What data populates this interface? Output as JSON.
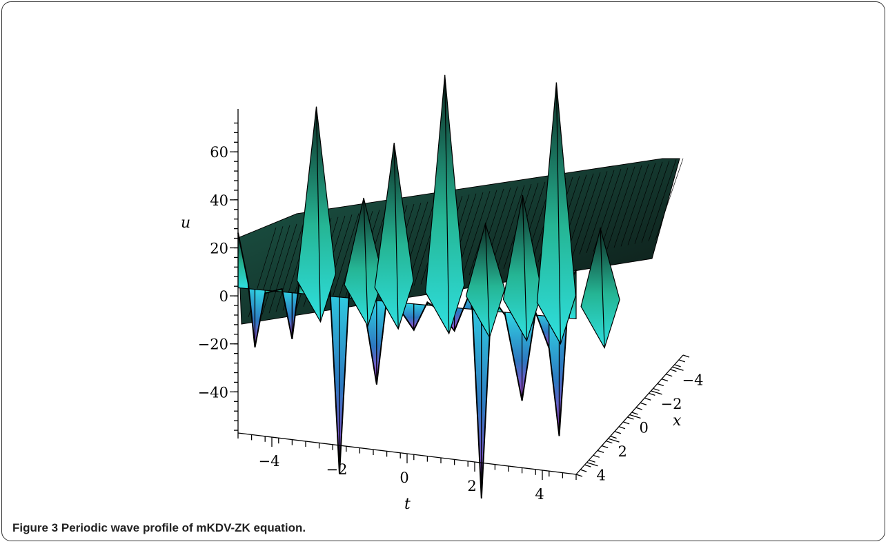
{
  "figure": {
    "number": "Figure 3",
    "caption": "Periodic wave profile of mKDV-ZK equation."
  },
  "chart_data": {
    "type": "surface3d",
    "title": "",
    "xlabel": "t",
    "ylabel": "x",
    "zlabel": "u",
    "t_range": [
      -5,
      5
    ],
    "x_range": [
      -5,
      5
    ],
    "u_range": [
      -60,
      75
    ],
    "t_ticks": [
      "-4",
      "-2",
      "0",
      "2",
      "4"
    ],
    "x_ticks": [
      "-4",
      "-2",
      "0",
      "2",
      "4"
    ],
    "u_ticks": [
      "-40",
      "-20",
      "0",
      "20",
      "40",
      "60"
    ],
    "u_tick_values": [
      -40,
      -20,
      0,
      20,
      40,
      60
    ],
    "t_tick_values": [
      -4,
      -2,
      0,
      2,
      4
    ],
    "x_tick_values": [
      -4,
      -2,
      0,
      2,
      4
    ],
    "front_profile": {
      "t": [
        -5,
        -4.7,
        -4.5,
        -4.2,
        -3.7,
        -3.4,
        -3.2,
        -2.7,
        -2.3,
        -2.0,
        -1.7,
        -1.3,
        -0.9,
        -0.6,
        -0.3,
        0.2,
        0.6,
        0.9,
        1.4,
        1.9,
        2.2,
        2.5,
        2.9,
        3.4,
        3.8,
        4.2,
        4.5,
        4.8,
        5.0
      ],
      "u": [
        22,
        5,
        -17,
        2,
        4,
        -13,
        6,
        3,
        10,
        -58,
        8,
        2,
        -26,
        4,
        2,
        -6,
        4,
        2,
        -5,
        10,
        -62,
        8,
        2,
        -27,
        4,
        -8,
        -38,
        15,
        20
      ]
    },
    "peak_ridges": [
      {
        "t": -3.5,
        "u": 60
      },
      {
        "t": -2.1,
        "u": 30
      },
      {
        "t": -1.2,
        "u": 50
      },
      {
        "t": 0.3,
        "u": 75
      },
      {
        "t": 1.5,
        "u": 25
      },
      {
        "t": 2.6,
        "u": 36
      },
      {
        "t": 3.6,
        "u": 76
      },
      {
        "t": 4.9,
        "u": 27
      }
    ],
    "colormap": [
      "#2fe0e8",
      "#2fc9a8",
      "#1d6b57",
      "#0c1a16",
      "#6a1e4f",
      "#b040c8"
    ],
    "grid": false,
    "legend": "none"
  }
}
